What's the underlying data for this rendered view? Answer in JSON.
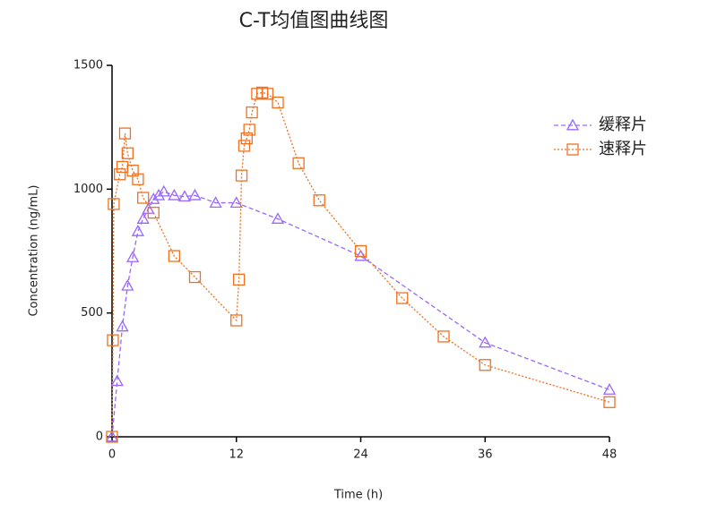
{
  "chart_data": {
    "type": "line",
    "title": "C-T均值图曲线图",
    "x_label": "Time (h)",
    "y_label": "Concentration (ng/mL)",
    "xlim": [
      0,
      48
    ],
    "xticks": [
      0,
      12,
      24,
      36,
      48
    ],
    "ylim": [
      0,
      1500
    ],
    "yticks": [
      0,
      500,
      1000,
      1500
    ],
    "grid": false,
    "legend": "upper right",
    "series": [
      {
        "name": "缓释片",
        "color": "#9966ff",
        "marker": "triangle",
        "dash": "dashed",
        "x": [
          0,
          0.5,
          1,
          1.5,
          2,
          2.5,
          3,
          3.5,
          4,
          4.5,
          5,
          6,
          7,
          8,
          10,
          12,
          16,
          24,
          36,
          48
        ],
        "values": [
          0,
          225,
          445,
          610,
          725,
          830,
          880,
          920,
          960,
          975,
          990,
          975,
          970,
          975,
          945,
          945,
          880,
          730,
          380,
          190
        ]
      },
      {
        "name": "速释片",
        "color": "#f07020",
        "marker": "square",
        "dash": "dotted",
        "x": [
          0,
          0.083,
          0.167,
          0.75,
          1,
          1.25,
          1.5,
          2,
          2.5,
          3,
          4,
          6,
          8,
          12,
          12.25,
          12.5,
          12.75,
          13,
          13.25,
          13.5,
          14,
          14.5,
          15,
          16,
          18,
          20,
          24,
          28,
          32,
          36,
          48
        ],
        "values": [
          0,
          390,
          940,
          1060,
          1090,
          1225,
          1145,
          1075,
          1040,
          965,
          905,
          730,
          645,
          470,
          635,
          1055,
          1175,
          1205,
          1240,
          1310,
          1385,
          1390,
          1385,
          1350,
          1105,
          955,
          750,
          560,
          405,
          290,
          140
        ]
      }
    ]
  }
}
